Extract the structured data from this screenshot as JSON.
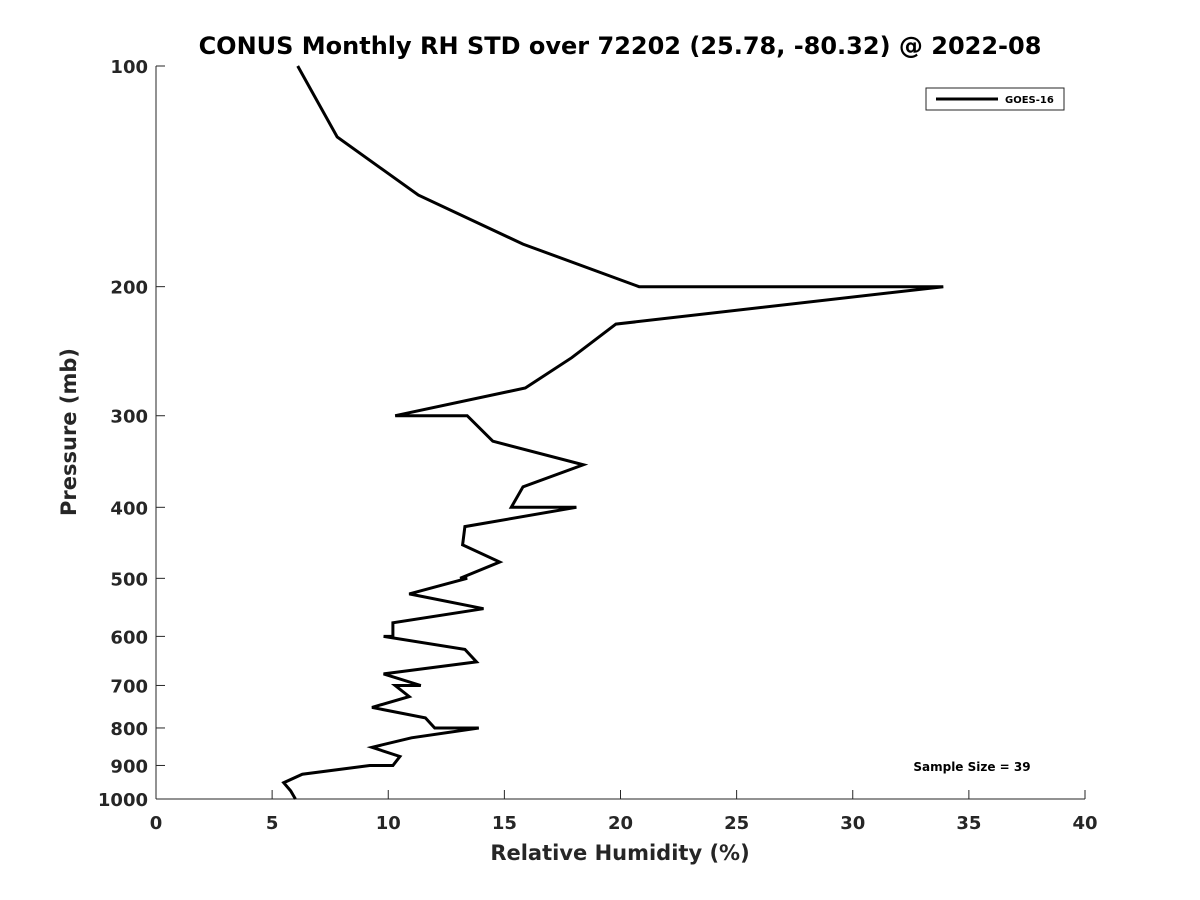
{
  "chart_data": {
    "type": "line",
    "title": "CONUS Monthly RH STD over 72202 (25.78, -80.32) @ 2022-08",
    "xlabel": "Relative Humidity (%)",
    "ylabel": "Pressure (mb)",
    "xlim": [
      0,
      40
    ],
    "ylim": [
      100,
      1000
    ],
    "y_scale": "log",
    "y_reversed": true,
    "x_ticks": [
      "0",
      "5",
      "10",
      "15",
      "20",
      "25",
      "30",
      "35",
      "40"
    ],
    "y_ticks": [
      "100",
      "200",
      "300",
      "400",
      "500",
      "600",
      "700",
      "800",
      "900",
      "1000"
    ],
    "grid": false,
    "legend_position": "top-right",
    "annotation": "Sample Size = 39",
    "line_color": "#000000",
    "series": [
      {
        "name": "GOES-16",
        "points": [
          [
            6.1,
            100
          ],
          [
            7.8,
            125
          ],
          [
            11.3,
            150
          ],
          [
            15.8,
            175
          ],
          [
            20.8,
            200
          ],
          [
            33.9,
            200
          ],
          [
            19.8,
            225
          ],
          [
            17.9,
            250
          ],
          [
            15.9,
            275
          ],
          [
            10.3,
            300
          ],
          [
            13.4,
            300
          ],
          [
            14.5,
            325
          ],
          [
            18.4,
            350
          ],
          [
            15.8,
            375
          ],
          [
            15.3,
            400
          ],
          [
            18.1,
            400
          ],
          [
            13.3,
            425
          ],
          [
            13.2,
            450
          ],
          [
            14.8,
            475
          ],
          [
            13.1,
            500
          ],
          [
            13.4,
            500
          ],
          [
            10.9,
            525
          ],
          [
            14.1,
            550
          ],
          [
            10.2,
            575
          ],
          [
            10.2,
            600
          ],
          [
            9.8,
            600
          ],
          [
            13.3,
            625
          ],
          [
            13.8,
            650
          ],
          [
            9.8,
            675
          ],
          [
            11.4,
            700
          ],
          [
            10.3,
            700
          ],
          [
            10.9,
            725
          ],
          [
            9.3,
            750
          ],
          [
            11.6,
            775
          ],
          [
            12.0,
            800
          ],
          [
            13.9,
            800
          ],
          [
            11.0,
            825
          ],
          [
            9.3,
            850
          ],
          [
            10.5,
            875
          ],
          [
            10.2,
            900
          ],
          [
            9.2,
            900
          ],
          [
            6.3,
            925
          ],
          [
            5.5,
            950
          ],
          [
            5.8,
            975
          ],
          [
            6.0,
            1000
          ]
        ]
      }
    ]
  }
}
